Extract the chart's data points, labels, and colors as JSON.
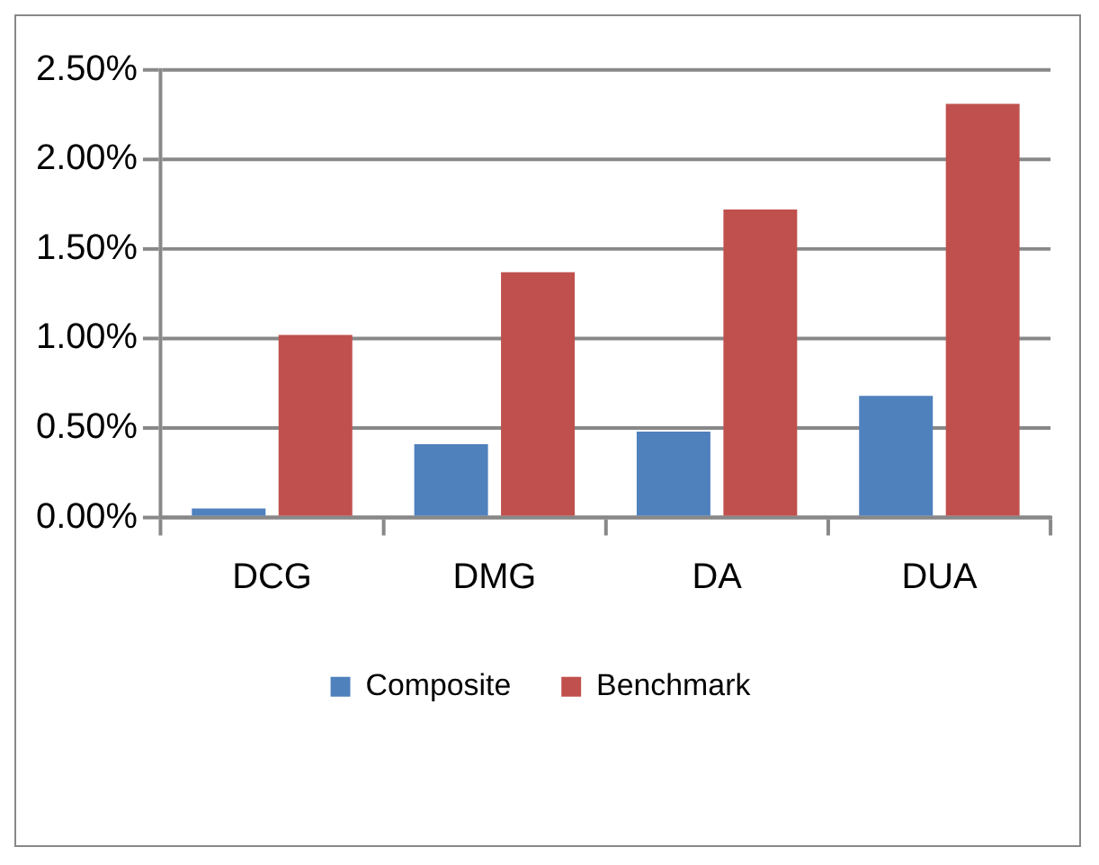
{
  "chart_data": {
    "type": "bar",
    "categories": [
      "DCG",
      "DMG",
      "DA",
      "DUA"
    ],
    "series": [
      {
        "name": "Composite",
        "color": "#4f81bd",
        "values": [
          0.05,
          0.41,
          0.48,
          0.68
        ]
      },
      {
        "name": "Benchmark",
        "color": "#c0504d",
        "values": [
          1.02,
          1.37,
          1.72,
          2.31
        ]
      }
    ],
    "ylim": [
      0,
      2.5
    ],
    "yticks": [
      {
        "value": 0,
        "label": "0.00%"
      },
      {
        "value": 0.5,
        "label": "0.50%"
      },
      {
        "value": 1,
        "label": "1.00%"
      },
      {
        "value": 1.5,
        "label": "1.50%"
      },
      {
        "value": 2,
        "label": "2.00%"
      },
      {
        "value": 2.5,
        "label": "2.50%"
      }
    ],
    "grid": "y",
    "legend": "bottom"
  }
}
